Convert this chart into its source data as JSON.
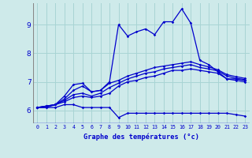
{
  "title": "Graphe des températures (°c)",
  "background_color": "#ceeaea",
  "grid_color": "#a8d4d4",
  "line_color": "#0000cc",
  "axis_line_color": "#0000cc",
  "x_labels": [
    "0",
    "1",
    "2",
    "3",
    "4",
    "5",
    "6",
    "7",
    "8",
    "9",
    "10",
    "11",
    "12",
    "13",
    "14",
    "15",
    "16",
    "17",
    "18",
    "19",
    "20",
    "21",
    "22",
    "23"
  ],
  "y_ticks": [
    6,
    7,
    8,
    9
  ],
  "ylim": [
    5.55,
    9.75
  ],
  "xlim": [
    -0.5,
    23.5
  ],
  "series": [
    [
      6.1,
      6.1,
      6.1,
      6.2,
      6.2,
      6.1,
      6.1,
      6.1,
      6.1,
      5.75,
      5.9,
      5.9,
      5.9,
      5.9,
      5.9,
      5.9,
      5.9,
      5.9,
      5.9,
      5.9,
      5.9,
      5.9,
      5.85,
      5.8
    ],
    [
      6.1,
      6.15,
      6.2,
      6.3,
      6.45,
      6.5,
      6.45,
      6.5,
      6.6,
      6.85,
      7.0,
      7.05,
      7.15,
      7.2,
      7.3,
      7.4,
      7.4,
      7.45,
      7.4,
      7.35,
      7.3,
      7.1,
      7.05,
      7.0
    ],
    [
      6.1,
      6.15,
      6.2,
      6.35,
      6.55,
      6.6,
      6.5,
      6.6,
      6.8,
      6.95,
      7.1,
      7.2,
      7.3,
      7.35,
      7.45,
      7.5,
      7.55,
      7.6,
      7.5,
      7.45,
      7.38,
      7.2,
      7.12,
      7.08
    ],
    [
      6.1,
      6.15,
      6.2,
      6.4,
      6.7,
      6.85,
      6.65,
      6.7,
      6.95,
      7.05,
      7.2,
      7.3,
      7.4,
      7.5,
      7.55,
      7.6,
      7.65,
      7.7,
      7.6,
      7.52,
      7.42,
      7.25,
      7.18,
      7.12
    ],
    [
      6.1,
      6.1,
      6.2,
      6.5,
      6.9,
      6.95,
      6.65,
      6.7,
      7.0,
      9.0,
      8.6,
      8.75,
      8.85,
      8.65,
      9.1,
      9.1,
      9.55,
      9.05,
      7.75,
      7.6,
      7.35,
      7.1,
      7.1,
      7.05
    ]
  ]
}
